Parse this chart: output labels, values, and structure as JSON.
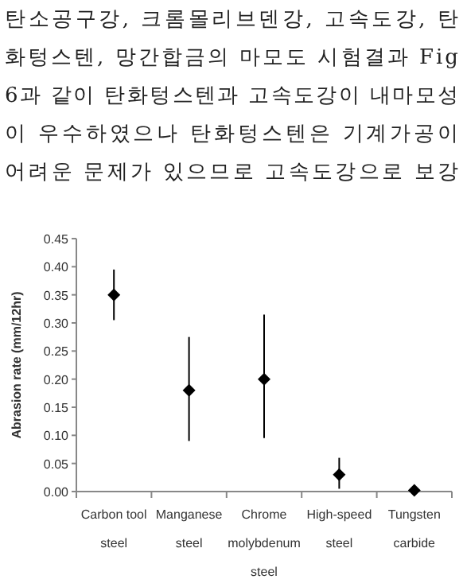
{
  "chart_data": {
    "type": "scatter",
    "ylabel": "Abrasion rate (mm/12hr)",
    "annotations": [
      "탄소공구강, 크롬몰리브덴강, 고속도강, 탄",
      "화텅스텐, 망간합금의 마모도 시험결과 Fig",
      "6과 같이 탄화텅스텐과 고속도강이 내마모성",
      "이 우수하였으나 탄화텅스텐은 기계가공이",
      "어려운 문제가 있으므로 고속도강으로 보강"
    ],
    "categories": [
      "Carbon tool steel",
      "Manganese steel",
      "Chrome molybdenum steel",
      "High-speed steel",
      "Tungsten carbide"
    ],
    "values": [
      0.35,
      0.18,
      0.2,
      0.03,
      0.002
    ],
    "errors": [
      [
        0.305,
        0.395
      ],
      [
        0.09,
        0.275
      ],
      [
        0.095,
        0.315
      ],
      [
        0.005,
        0.06
      ],
      null
    ],
    "color": "#000000",
    "marker": "diamond",
    "ylim": [
      0,
      0.45
    ],
    "yticks": [
      {
        "value": 0,
        "label": "0.00"
      },
      {
        "value": 0.05,
        "label": "0.05"
      },
      {
        "value": 0.1,
        "label": "0.10"
      },
      {
        "value": 0.15,
        "label": "0.15"
      },
      {
        "value": 0.2,
        "label": "0.20"
      },
      {
        "value": 0.25,
        "label": "0.25"
      },
      {
        "value": 0.3,
        "label": "0.30"
      },
      {
        "value": 0.35,
        "label": "0.35"
      },
      {
        "value": 0.4,
        "label": "0.40"
      },
      {
        "value": 0.45,
        "label": "0.45"
      }
    ]
  }
}
